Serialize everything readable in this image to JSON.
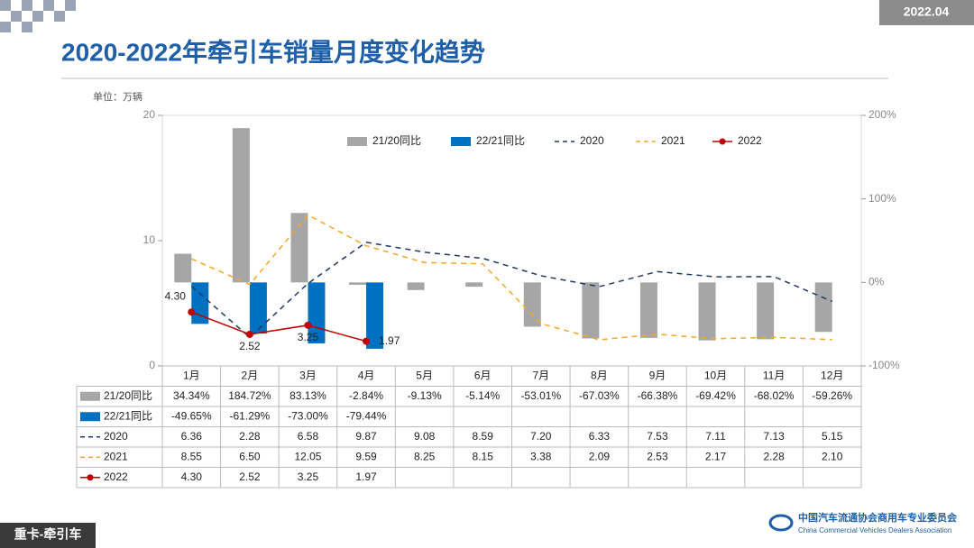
{
  "header": {
    "date": "2022.04",
    "footer": "重卡-牵引车",
    "org_cn": "中国汽车流通协会商用车专业委员会",
    "org_en": "China Commercial Vehicles Dealers Association"
  },
  "chart_data": {
    "type": "bar-line",
    "title": "2020-2022年牵引车销量月度变化趋势",
    "unit": "单位：万辆",
    "categories": [
      "1月",
      "2月",
      "3月",
      "4月",
      "5月",
      "6月",
      "7月",
      "8月",
      "9月",
      "10月",
      "11月",
      "12月"
    ],
    "ylim": [
      0,
      20
    ],
    "yticks": [
      0,
      10,
      20
    ],
    "y2lim": [
      -100,
      200
    ],
    "y2ticks": [
      {
        "value": -100,
        "label": "-100%"
      },
      {
        "value": 0,
        "label": "0%"
      },
      {
        "value": 100,
        "label": "100%"
      },
      {
        "value": 200,
        "label": "200%"
      }
    ],
    "series": [
      {
        "name": "21/20同比",
        "type": "bar",
        "axis": "y2",
        "color": "#a6a6a6",
        "values": [
          34.34,
          184.72,
          83.13,
          -2.84,
          -9.13,
          -5.14,
          -53.01,
          -67.03,
          -66.38,
          -69.42,
          -68.02,
          -59.26
        ],
        "value_labels": [
          "34.34%",
          "184.72%",
          "83.13%",
          "-2.84%",
          "-9.13%",
          "-5.14%",
          "-53.01%",
          "-67.03%",
          "-66.38%",
          "-69.42%",
          "-68.02%",
          "-59.26%"
        ]
      },
      {
        "name": "22/21同比",
        "type": "bar",
        "axis": "y2",
        "color": "#0070c0",
        "values": [
          -49.65,
          -61.29,
          -73.0,
          -79.44,
          null,
          null,
          null,
          null,
          null,
          null,
          null,
          null
        ],
        "value_labels": [
          "-49.65%",
          "-61.29%",
          "-73.00%",
          "-79.44%",
          null,
          null,
          null,
          null,
          null,
          null,
          null,
          null
        ]
      },
      {
        "name": "2020",
        "type": "line",
        "dash": true,
        "color": "#1f3864",
        "values": [
          6.36,
          2.28,
          6.58,
          9.87,
          9.08,
          8.59,
          7.2,
          6.33,
          7.53,
          7.11,
          7.13,
          5.15
        ],
        "value_labels": [
          "6.36",
          "2.28",
          "6.58",
          "9.87",
          "9.08",
          "8.59",
          "7.20",
          "6.33",
          "7.53",
          "7.11",
          "7.13",
          "5.15"
        ]
      },
      {
        "name": "2021",
        "type": "line",
        "dash": true,
        "color": "#f5a623",
        "values": [
          8.55,
          6.5,
          12.05,
          9.59,
          8.25,
          8.15,
          3.38,
          2.09,
          2.53,
          2.17,
          2.28,
          2.1
        ],
        "value_labels": [
          "8.55",
          "6.50",
          "12.05",
          "9.59",
          "8.25",
          "8.15",
          "3.38",
          "2.09",
          "2.53",
          "2.17",
          "2.28",
          "2.10"
        ]
      },
      {
        "name": "2022",
        "type": "line",
        "dash": false,
        "markers": true,
        "color": "#c00000",
        "values": [
          4.3,
          2.52,
          3.25,
          1.97,
          null,
          null,
          null,
          null,
          null,
          null,
          null,
          null
        ],
        "value_labels": [
          "4.30",
          "2.52",
          "3.25",
          "1.97",
          null,
          null,
          null,
          null,
          null,
          null,
          null,
          null
        ]
      }
    ]
  }
}
